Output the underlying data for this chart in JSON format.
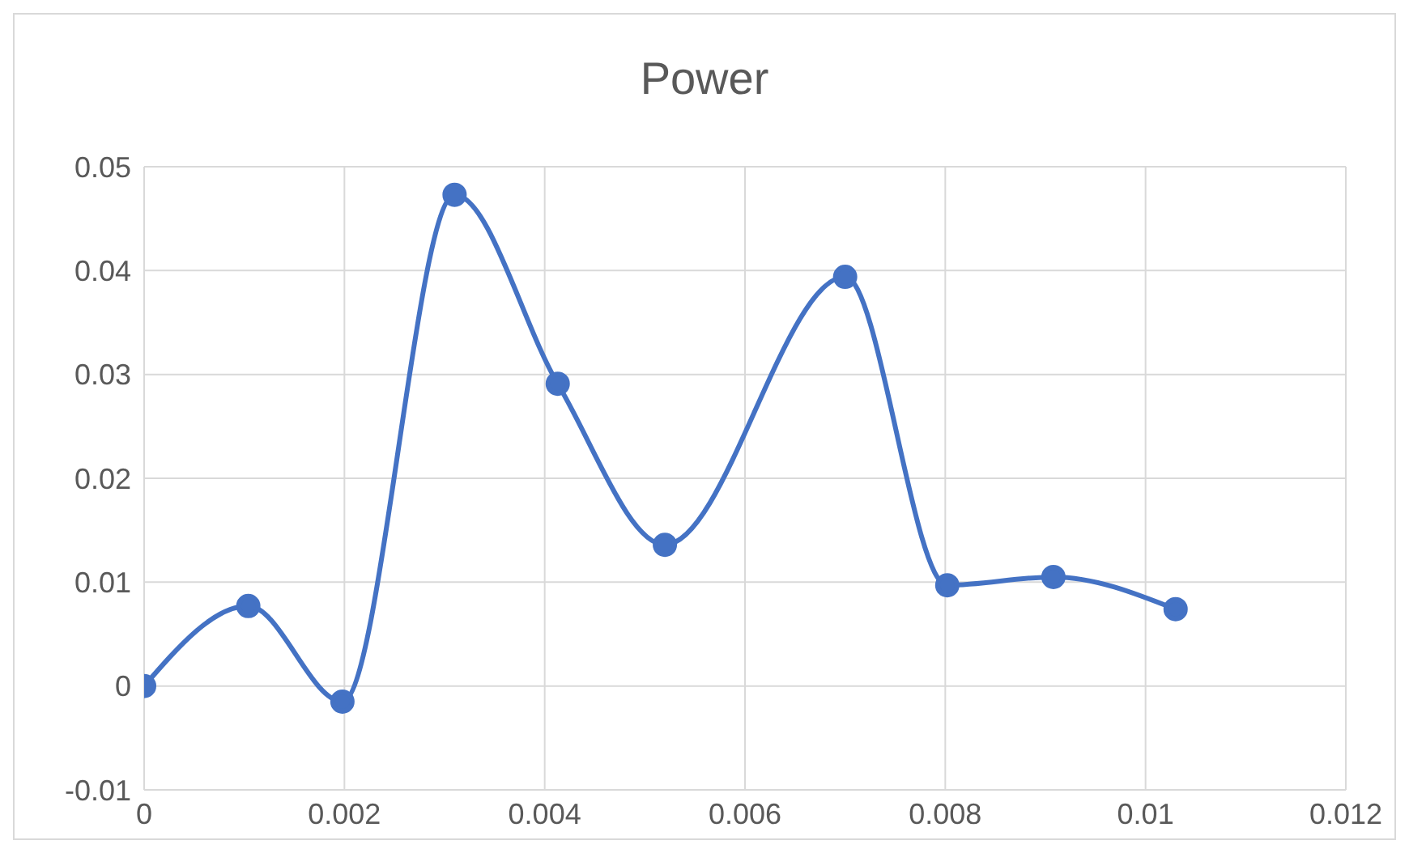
{
  "chart_data": {
    "type": "line",
    "title": "Power",
    "x": [
      0,
      0.00104,
      0.00198,
      0.0031,
      0.00413,
      0.0052,
      0.007,
      0.00802,
      0.00908,
      0.0103
    ],
    "series": [
      {
        "color": "#4472c4",
        "values": [
          0,
          0.0077,
          -0.0015,
          0.0473,
          0.0291,
          0.0136,
          0.0394,
          0.0097,
          0.0105,
          0.0074
        ]
      }
    ],
    "xlim": [
      0,
      0.012
    ],
    "xticks": [
      0,
      0.002,
      0.004,
      0.006,
      0.008,
      0.01,
      0.012
    ],
    "ylim": [
      -0.01,
      0.05
    ],
    "yticks": [
      -0.01,
      0,
      0.01,
      0.02,
      0.03,
      0.04,
      0.05
    ],
    "grid": true,
    "legend": false,
    "marker": "circle",
    "line_style": "solid"
  }
}
